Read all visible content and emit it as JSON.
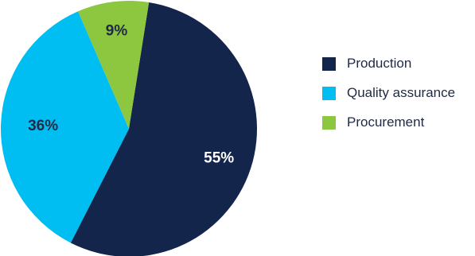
{
  "chart_data": {
    "type": "pie",
    "categories": [
      "Production",
      "Quality assurance",
      "Procurement"
    ],
    "values": [
      55,
      36,
      9
    ],
    "data_labels": [
      "55%",
      "36%",
      "9%"
    ],
    "colors": [
      "#13254a",
      "#00bdf2",
      "#8dc63f"
    ],
    "label_colors": [
      "#ffffff",
      "#1e2a44",
      "#1e2a44"
    ],
    "legend_position": "right",
    "title": "",
    "start_angle_deg": 9,
    "direction": "clockwise"
  }
}
